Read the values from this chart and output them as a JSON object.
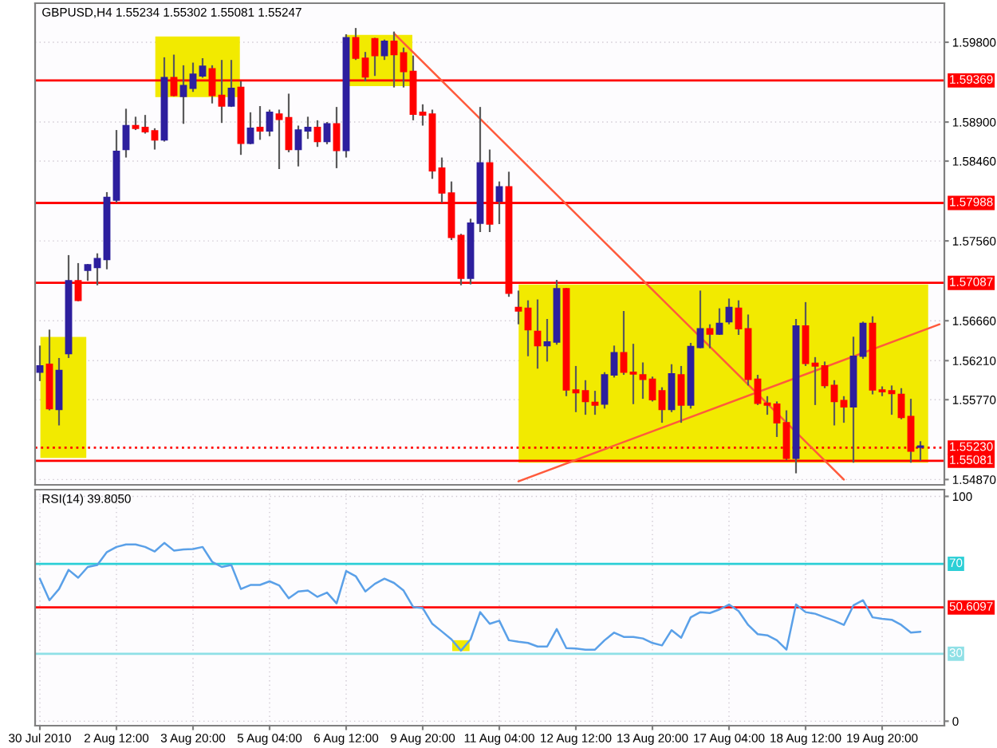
{
  "chart_data": [
    {
      "type": "candlestick",
      "title": "GBPUSD,H4 1.55234 1.55302 1.55081 1.55247",
      "categories": [
        null,
        null,
        null,
        null,
        null,
        null,
        null,
        null,
        null,
        null,
        null,
        null,
        null,
        null,
        null,
        null,
        null,
        null,
        null,
        null,
        null,
        null,
        null,
        null,
        null,
        null,
        null,
        null,
        null,
        null,
        null,
        null,
        null,
        null,
        null,
        null,
        null,
        null,
        null,
        null,
        null,
        null,
        null,
        null,
        null,
        null,
        null,
        null,
        null,
        null,
        null,
        null,
        null,
        null,
        null,
        null,
        null,
        null,
        null,
        null,
        null,
        null,
        null,
        null,
        null,
        null,
        null,
        null,
        null,
        null,
        null,
        null,
        null,
        null,
        null,
        null,
        null,
        null,
        null,
        null,
        null,
        null,
        null,
        null,
        null,
        null,
        null,
        null,
        null,
        null,
        null,
        null,
        null,
        null,
        null
      ],
      "ohlc": [
        [
          1.5608,
          1.5638,
          1.5598,
          1.5615
        ],
        [
          1.5617,
          1.5656,
          1.5565,
          1.5567
        ],
        [
          1.5566,
          1.5624,
          1.5548,
          1.561
        ],
        [
          1.5629,
          1.574,
          1.5624,
          1.5711
        ],
        [
          1.5711,
          1.5731,
          1.5688,
          1.5689
        ],
        [
          1.5723,
          1.573,
          1.5711,
          1.5729
        ],
        [
          1.5726,
          1.5742,
          1.5706,
          1.5736
        ],
        [
          1.5735,
          1.5811,
          1.5724,
          1.5805
        ],
        [
          1.5802,
          1.5881,
          1.5799,
          1.5857
        ],
        [
          1.5859,
          1.5905,
          1.585,
          1.5886
        ],
        [
          1.5886,
          1.5896,
          1.5881,
          1.5883
        ],
        [
          1.5884,
          1.5898,
          1.5877,
          1.5879
        ],
        [
          1.588,
          1.5883,
          1.5859,
          1.587
        ],
        [
          1.587,
          1.5963,
          1.5868,
          1.594
        ],
        [
          1.594,
          1.5966,
          1.5919,
          1.592
        ],
        [
          1.5919,
          1.5954,
          1.5888,
          1.5931
        ],
        [
          1.5928,
          1.5957,
          1.5924,
          1.5944
        ],
        [
          1.5942,
          1.5962,
          1.594,
          1.5953
        ],
        [
          1.595,
          1.5954,
          1.5911,
          1.592
        ],
        [
          1.592,
          1.596,
          1.5889,
          1.5908
        ],
        [
          1.5908,
          1.596,
          1.5907,
          1.5928
        ],
        [
          1.5929,
          1.5936,
          1.5853,
          1.5866
        ],
        [
          1.5866,
          1.5901,
          1.5865,
          1.5883
        ],
        [
          1.5884,
          1.5908,
          1.587,
          1.588
        ],
        [
          1.588,
          1.5904,
          1.5874,
          1.5901
        ],
        [
          1.5899,
          1.5904,
          1.5837,
          1.5893
        ],
        [
          1.5895,
          1.5922,
          1.5856,
          1.5859
        ],
        [
          1.5859,
          1.5886,
          1.584,
          1.5881
        ],
        [
          1.588,
          1.5896,
          1.5871,
          1.5884
        ],
        [
          1.5884,
          1.5892,
          1.5862,
          1.5868
        ],
        [
          1.5868,
          1.589,
          1.5865,
          1.5888
        ],
        [
          1.5888,
          1.5907,
          1.5838,
          1.5858
        ],
        [
          1.5858,
          1.5989,
          1.585,
          1.5985
        ],
        [
          1.5985,
          1.5996,
          1.596,
          1.5962
        ],
        [
          1.5962,
          1.5969,
          1.5936,
          1.5941
        ],
        [
          1.5984,
          1.5985,
          1.5942,
          1.5965
        ],
        [
          1.5965,
          1.5983,
          1.596,
          1.5981
        ],
        [
          1.5981,
          1.5992,
          1.5929,
          1.5966
        ],
        [
          1.5968,
          1.5974,
          1.5929,
          1.5947
        ],
        [
          1.5947,
          1.5965,
          1.5892,
          1.5899
        ],
        [
          1.5901,
          1.591,
          1.5886,
          1.5898
        ],
        [
          1.5899,
          1.5904,
          1.5826,
          1.5835
        ],
        [
          1.5838,
          1.585,
          1.5799,
          1.581
        ],
        [
          1.581,
          1.5823,
          1.5757,
          1.576
        ],
        [
          1.5762,
          1.5764,
          1.5706,
          1.5714
        ],
        [
          1.5714,
          1.5781,
          1.5707,
          1.5776
        ],
        [
          1.5776,
          1.5907,
          1.5766,
          1.5844
        ],
        [
          1.5844,
          1.5859,
          1.5766,
          1.5775
        ],
        [
          1.5801,
          1.5823,
          1.5775,
          1.5817
        ],
        [
          1.5817,
          1.5834,
          1.5693,
          1.5697
        ],
        [
          1.5681,
          1.57,
          1.5662,
          1.5677
        ],
        [
          1.568,
          1.5689,
          1.5626,
          1.5656
        ],
        [
          1.5654,
          1.569,
          1.5612,
          1.5638
        ],
        [
          1.5638,
          1.5668,
          1.562,
          1.5642
        ],
        [
          1.5642,
          1.5712,
          1.5639,
          1.5702
        ],
        [
          1.5702,
          1.5703,
          1.5581,
          1.5588
        ],
        [
          1.5588,
          1.5615,
          1.5563,
          1.5585
        ],
        [
          1.5587,
          1.5599,
          1.556,
          1.5575
        ],
        [
          1.5574,
          1.5587,
          1.556,
          1.5571
        ],
        [
          1.5572,
          1.5608,
          1.5567,
          1.5605
        ],
        [
          1.5605,
          1.5638,
          1.5602,
          1.563
        ],
        [
          1.563,
          1.5677,
          1.5605,
          1.5608
        ],
        [
          1.5608,
          1.564,
          1.5572,
          1.5606
        ],
        [
          1.5605,
          1.5619,
          1.5578,
          1.56
        ],
        [
          1.56,
          1.5603,
          1.5575,
          1.5577
        ],
        [
          1.5587,
          1.5591,
          1.5551,
          1.5566
        ],
        [
          1.5566,
          1.5617,
          1.5563,
          1.5606
        ],
        [
          1.5605,
          1.5615,
          1.5551,
          1.5571
        ],
        [
          1.5571,
          1.5641,
          1.5567,
          1.5637
        ],
        [
          1.5636,
          1.57,
          1.5635,
          1.5657
        ],
        [
          1.5657,
          1.5662,
          1.5635,
          1.5651
        ],
        [
          1.5651,
          1.568,
          1.565,
          1.5663
        ],
        [
          1.5665,
          1.5691,
          1.5662,
          1.5681
        ],
        [
          1.568,
          1.5689,
          1.565,
          1.5657
        ],
        [
          1.5657,
          1.5673,
          1.5593,
          1.56
        ],
        [
          1.56,
          1.5605,
          1.5571,
          1.5573
        ],
        [
          1.5573,
          1.5581,
          1.556,
          1.5571
        ],
        [
          1.5572,
          1.5575,
          1.5535,
          1.5551
        ],
        [
          1.5551,
          1.5565,
          1.5509,
          1.5511
        ],
        [
          1.5511,
          1.5668,
          1.5494,
          1.566
        ],
        [
          1.566,
          1.5687,
          1.5615,
          1.5618
        ],
        [
          1.5618,
          1.5625,
          1.5571,
          1.5615
        ],
        [
          1.5615,
          1.562,
          1.559,
          1.5593
        ],
        [
          1.5593,
          1.5599,
          1.5548,
          1.5575
        ],
        [
          1.5576,
          1.5581,
          1.5551,
          1.5569
        ],
        [
          1.5569,
          1.5648,
          1.5506,
          1.5626
        ],
        [
          1.5626,
          1.5665,
          1.5623,
          1.5663
        ],
        [
          1.5663,
          1.5671,
          1.5583,
          1.5588
        ],
        [
          1.5588,
          1.5592,
          1.5581,
          1.5586
        ],
        [
          1.5587,
          1.5593,
          1.556,
          1.5584
        ],
        [
          1.5583,
          1.559,
          1.5555,
          1.5557
        ],
        [
          1.5558,
          1.5578,
          1.5506,
          1.5519
        ],
        [
          1.55234,
          1.55302,
          1.55081,
          1.55247
        ],
        null,
        null
      ],
      "colors": [
        "#2d1f9e",
        "#ff0000",
        "#2d1f9e",
        "#2d1f9e",
        "#ff0000",
        "#2d1f9e",
        "#2d1f9e",
        "#2d1f9e",
        "#2d1f9e",
        "#2d1f9e",
        "#ff0000",
        "#ff0000",
        "#ff0000",
        "#2d1f9e",
        "#ff0000",
        "#2d1f9e",
        "#2d1f9e",
        "#2d1f9e",
        "#ff0000",
        "#ff0000",
        "#2d1f9e",
        "#ff0000",
        "#2d1f9e",
        "#ff0000",
        "#2d1f9e",
        "#ff0000",
        "#ff0000",
        "#2d1f9e",
        "#2d1f9e",
        "#ff0000",
        "#2d1f9e",
        "#ff0000",
        "#2d1f9e",
        "#ff0000",
        "#ff0000",
        "#ff0000",
        "#2d1f9e",
        "#ff0000",
        "#ff0000",
        "#ff0000",
        "#ff0000",
        "#ff0000",
        "#ff0000",
        "#ff0000",
        "#ff0000",
        "#2d1f9e",
        "#2d1f9e",
        "#ff0000",
        "#2d1f9e",
        "#ff0000",
        "#ff0000",
        "#ff0000",
        "#ff0000",
        "#2d1f9e",
        "#2d1f9e",
        "#ff0000",
        "#ff0000",
        "#ff0000",
        "#ff0000",
        "#2d1f9e",
        "#2d1f9e",
        "#ff0000",
        "#ff0000",
        "#ff0000",
        "#ff0000",
        "#ff0000",
        "#2d1f9e",
        "#ff0000",
        "#2d1f9e",
        "#2d1f9e",
        "#ff0000",
        "#2d1f9e",
        "#2d1f9e",
        "#ff0000",
        "#ff0000",
        "#ff0000",
        "#ff0000",
        "#ff0000",
        "#ff0000",
        "#2d1f9e",
        "#ff0000",
        "#ff0000",
        "#ff0000",
        "#ff0000",
        "#ff0000",
        "#2d1f9e",
        "#2d1f9e",
        "#ff0000",
        "#ff0000",
        "#ff0000",
        "#ff0000",
        "#ff0000",
        "#2d1f9e",
        null,
        null
      ],
      "series": [
        {
          "type": "line",
          "color": "#ff5a3c",
          "values": [
            null,
            null,
            null,
            null,
            null,
            null,
            null,
            null,
            null,
            null,
            null,
            null,
            null,
            null,
            null,
            null,
            null,
            null,
            null,
            null,
            null,
            null,
            null,
            null,
            null,
            null,
            null,
            null,
            null,
            null,
            null,
            null,
            null,
            null,
            null,
            null,
            null,
            1.599,
            null,
            null,
            null,
            null,
            null,
            null,
            null,
            null,
            null,
            null,
            null,
            null,
            null,
            null,
            null,
            null,
            null,
            null,
            null,
            null,
            null,
            null,
            null,
            null,
            null,
            null,
            null,
            null,
            null,
            null,
            null,
            null,
            null,
            null,
            null,
            null,
            null,
            null,
            null,
            null,
            null,
            null,
            null,
            null,
            null,
            null,
            1.5487,
            null,
            null,
            null,
            null,
            null,
            null,
            null,
            null,
            null,
            null
          ]
        },
        {
          "type": "line",
          "color": "#ff5a3c",
          "values": [
            null,
            null,
            null,
            null,
            null,
            null,
            null,
            null,
            null,
            null,
            null,
            null,
            null,
            null,
            null,
            null,
            null,
            null,
            null,
            null,
            null,
            null,
            null,
            null,
            null,
            null,
            null,
            null,
            null,
            null,
            null,
            null,
            null,
            null,
            null,
            null,
            null,
            null,
            null,
            null,
            null,
            null,
            null,
            null,
            null,
            null,
            null,
            null,
            null,
            null,
            1.5485,
            null,
            null,
            null,
            null,
            null,
            null,
            null,
            null,
            null,
            null,
            null,
            null,
            null,
            null,
            null,
            null,
            null,
            null,
            null,
            null,
            null,
            null,
            null,
            null,
            null,
            null,
            null,
            null,
            null,
            null,
            null,
            null,
            null,
            null,
            null,
            null,
            null,
            null,
            null,
            null,
            null,
            null,
            null,
            1.5662
          ]
        }
      ],
      "ylim": [
        1.5481,
        1.6024
      ],
      "yticks": [
        {
          "value": 1.598,
          "label": "1.59800"
        },
        {
          "value": 1.589,
          "label": "1.58900"
        },
        {
          "value": 1.5846,
          "label": "1.58460"
        },
        {
          "value": 1.5756,
          "label": "1.57560"
        },
        {
          "value": 1.5666,
          "label": "1.56660"
        },
        {
          "value": 1.5621,
          "label": "1.56210"
        },
        {
          "value": 1.5577,
          "label": "1.55770"
        },
        {
          "value": 1.5487,
          "label": "1.54870"
        }
      ],
      "ref_lines": [
        {
          "axis": "y",
          "value": 1.59369,
          "label": "1.59369",
          "color": "#ff0000"
        },
        {
          "axis": "y",
          "value": 1.57988,
          "label": "1.57988",
          "color": "#ff0000"
        },
        {
          "axis": "y",
          "value": 1.57087,
          "label": "1.57087",
          "color": "#ff0000"
        },
        {
          "axis": "y",
          "value": 1.5523,
          "label": "1.55230",
          "color": "#ff0000",
          "line_style": "dotted"
        },
        {
          "axis": "y",
          "value": 1.55081,
          "label": "1.55081",
          "color": "#ff0000"
        }
      ],
      "grid": "y",
      "tick_labels": "y"
    },
    {
      "type": "line",
      "title": "RSI(14) 39.8050",
      "categories": [
        "30 Jul 2010",
        null,
        null,
        null,
        null,
        null,
        null,
        null,
        "2 Aug 12:00",
        null,
        null,
        null,
        null,
        null,
        null,
        null,
        "3 Aug 20:00",
        null,
        null,
        null,
        null,
        null,
        null,
        null,
        "5 Aug 04:00",
        null,
        null,
        null,
        null,
        null,
        null,
        null,
        "6 Aug 12:00",
        null,
        null,
        null,
        null,
        null,
        null,
        null,
        "9 Aug 20:00",
        null,
        null,
        null,
        null,
        null,
        null,
        null,
        "11 Aug 04:00",
        null,
        null,
        null,
        null,
        null,
        null,
        null,
        "12 Aug 12:00",
        null,
        null,
        null,
        null,
        null,
        null,
        null,
        "13 Aug 20:00",
        null,
        null,
        null,
        null,
        null,
        null,
        null,
        "17 Aug 04:00",
        null,
        null,
        null,
        null,
        null,
        null,
        null,
        "18 Aug 12:00",
        null,
        null,
        null,
        null,
        null,
        null,
        null,
        "19 Aug 20:00",
        null,
        null,
        null,
        null,
        null,
        null
      ],
      "values": [
        63.4,
        53.8,
        58.8,
        67.3,
        63.8,
        68.6,
        69.5,
        75.2,
        77.5,
        78.6,
        78.6,
        77.5,
        75.5,
        79.3,
        75.9,
        76.4,
        76.6,
        77.5,
        70.9,
        68.6,
        69.5,
        58.8,
        60.6,
        60.6,
        62.2,
        60.4,
        54.7,
        57.7,
        58.1,
        55.3,
        57.2,
        52.4,
        66.8,
        64.5,
        57.7,
        61.1,
        63.4,
        61.5,
        58.1,
        50.8,
        50.3,
        43.3,
        39.9,
        36.4,
        31.4,
        36.4,
        48.5,
        43.3,
        44.7,
        36.0,
        35.3,
        34.8,
        33.2,
        33.2,
        41.0,
        32.5,
        32.3,
        31.8,
        31.8,
        36.0,
        39.4,
        37.5,
        37.5,
        36.8,
        34.8,
        33.7,
        40.5,
        37.1,
        46.2,
        48.5,
        48.1,
        49.7,
        51.9,
        49.0,
        42.8,
        38.7,
        38.2,
        36.0,
        31.8,
        51.9,
        48.5,
        47.8,
        46.2,
        44.7,
        42.8,
        51.5,
        53.8,
        46.2,
        45.5,
        45.1,
        42.8,
        39.4,
        39.8,
        null,
        null
      ],
      "color": "#5aa0e8",
      "ylim": [
        -2,
        103
      ],
      "yticks": [
        100,
        0
      ],
      "ref_lines": [
        {
          "axis": "y",
          "value": 70,
          "label": "70",
          "color": "#2ccfd6"
        },
        {
          "axis": "y",
          "value": 50.6097,
          "label": "50.6097",
          "color": "#ff0000"
        },
        {
          "axis": "y",
          "value": 30,
          "label": "30",
          "color": "#8fe0e6"
        }
      ],
      "grid": true
    }
  ]
}
